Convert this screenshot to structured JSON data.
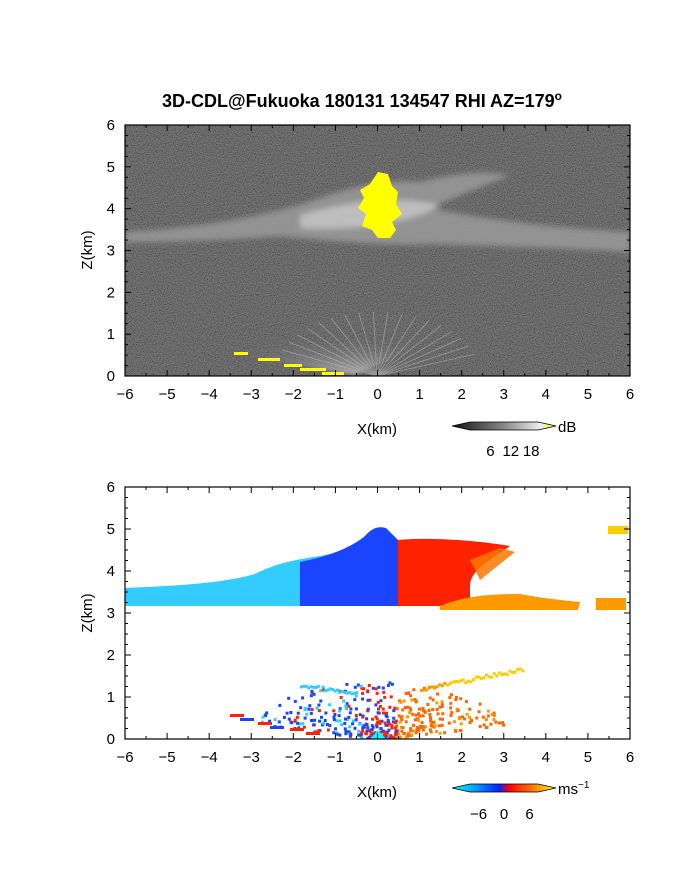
{
  "chart_data": [
    {
      "type": "heatmap",
      "title": "3D-CDL@Fukuoka 180131 134547 RHI AZ=179",
      "title_superscript": "o",
      "xlabel": "X(km)",
      "ylabel": "Z(km)",
      "xlim": [
        -6,
        6
      ],
      "ylim": [
        0,
        6
      ],
      "x_ticks": [
        "-6",
        "-5",
        "-4",
        "-3",
        "-2",
        "-1",
        "0",
        "1",
        "2",
        "3",
        "4",
        "5",
        "6"
      ],
      "y_ticks": [
        "0",
        "1",
        "2",
        "3",
        "4",
        "5",
        "6"
      ],
      "colorbar": {
        "unit": "dB",
        "range": [
          0,
          20
        ],
        "tick_labels": [
          "6",
          "12",
          "18"
        ],
        "colors": [
          "#111111",
          "#888888",
          "#eeeeee",
          "#ffff00"
        ]
      },
      "features": {
        "cloud_layer_km": [
          3.2,
          4.8
        ],
        "strong_echo_x_km": [
          -0.4,
          0.6
        ],
        "strong_echo_z_km": [
          3.3,
          4.8
        ]
      }
    },
    {
      "type": "heatmap",
      "xlabel": "X(km)",
      "ylabel": "Z(km)",
      "xlim": [
        -6,
        6
      ],
      "ylim": [
        0,
        6
      ],
      "x_ticks": [
        "-6",
        "-5",
        "-4",
        "-3",
        "-2",
        "-1",
        "0",
        "1",
        "2",
        "3",
        "4",
        "5",
        "6"
      ],
      "y_ticks": [
        "0",
        "1",
        "2",
        "3",
        "4",
        "5",
        "6"
      ],
      "colorbar": {
        "unit_base": "ms",
        "unit_exp": "−1",
        "range": [
          -8,
          8
        ],
        "tick_labels": [
          "−6",
          "0",
          "6"
        ],
        "colors": [
          "#00ffff",
          "#0022ff",
          "#ff0000",
          "#ff8800",
          "#ffff00"
        ]
      }
    }
  ]
}
